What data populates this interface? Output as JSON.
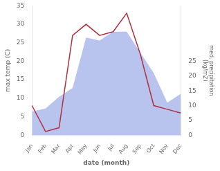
{
  "chart_data": {
    "type": "line",
    "xlabel": "date (month)",
    "ylabel": "max temp (C)",
    "y2label": "med. precipitation\n(kg/m2)",
    "categories": [
      "Jan",
      "Feb",
      "Mar",
      "Apr",
      "May",
      "Jun",
      "Jul",
      "Aug",
      "Sep",
      "Oct",
      "Nov",
      "Dec"
    ],
    "series": [
      {
        "type": "area",
        "axis": "y2",
        "color": "#b8c4ee",
        "values": [
          8,
          9,
          13,
          16,
          33,
          32,
          35,
          35,
          28,
          21,
          11,
          14
        ]
      },
      {
        "type": "line",
        "color": "#b03040",
        "values": [
          8,
          1,
          2,
          27,
          30,
          27,
          28,
          33,
          22,
          8,
          7,
          6
        ]
      }
    ],
    "ylim": [
      0,
      35
    ],
    "yticks": [
      0,
      5,
      10,
      15,
      20,
      25,
      30,
      35
    ],
    "y2lim": [
      0,
      43.75
    ],
    "y2ticks": [
      0,
      5,
      10,
      15,
      20,
      25
    ],
    "grid": false
  }
}
